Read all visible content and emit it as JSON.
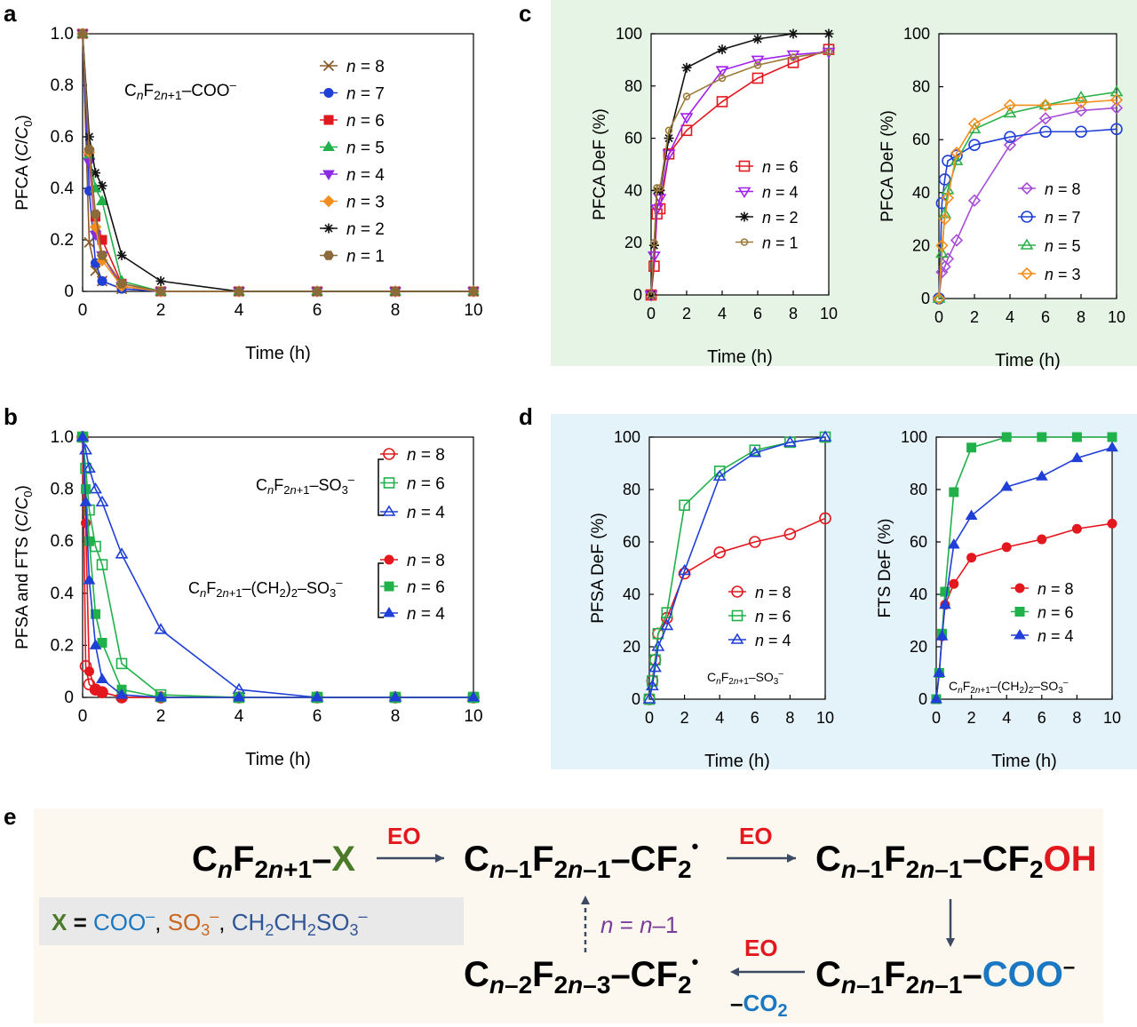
{
  "panels": {
    "a": {
      "label": "a"
    },
    "b": {
      "label": "b"
    },
    "c": {
      "label": "c",
      "bg": "#e6f4e6"
    },
    "d": {
      "label": "d",
      "bg": "#e4f2fa"
    },
    "e": {
      "label": "e",
      "bg": "#fcf7ef"
    }
  },
  "colors": {
    "n8": "#8b5a2b",
    "n7": "#1f3fd6",
    "n6": "#e3181f",
    "n5": "#20b14a",
    "n4": "#8a2be2",
    "n3": "#f28e1c",
    "n2": "#111111",
    "n1": "#8b6b3a",
    "c_n6": "#e3181f",
    "c_n4": "#a020f0",
    "c_n2": "#111111",
    "c_n1": "#9c7a3c",
    "c_n8": "#a64dd6",
    "c_n7": "#1f3fd6",
    "c_n5": "#2cb14a",
    "c_n3": "#f28e1c",
    "s_n8": "#e3181f",
    "s_n6": "#20b14a",
    "s_n4": "#1f3fd6"
  },
  "chart_data": [
    {
      "id": "a",
      "type": "line",
      "ylabel": "PFCA (C/C0)",
      "xlabel": "Time (h)",
      "xlim": [
        0,
        10
      ],
      "ylim": [
        0,
        1.0
      ],
      "xticks": [
        "0",
        "2",
        "4",
        "6",
        "8",
        "10"
      ],
      "yticks": [
        "0",
        "0.2",
        "0.4",
        "0.6",
        "0.8",
        "1.0"
      ],
      "annotation": "CnF2n+1–COO⁻",
      "x": [
        0,
        0.17,
        0.33,
        0.5,
        1,
        2,
        4,
        6,
        8,
        10
      ],
      "series": [
        {
          "name": "n = 8",
          "marker": "x",
          "color": "n8",
          "values": [
            1.0,
            0.19,
            0.08,
            0.04,
            0.01,
            0.0,
            0.0,
            0.0,
            0.0,
            0.0
          ]
        },
        {
          "name": "n = 7",
          "marker": "circle",
          "color": "n7",
          "values": [
            1.0,
            0.39,
            0.11,
            0.04,
            0.01,
            0.0,
            0.0,
            0.0,
            0.0,
            0.0
          ]
        },
        {
          "name": "n = 6",
          "marker": "square",
          "color": "n6",
          "values": [
            1.0,
            0.54,
            0.29,
            0.2,
            0.03,
            0.0,
            0.0,
            0.0,
            0.0,
            0.0
          ]
        },
        {
          "name": "n = 5",
          "marker": "triangle-up",
          "color": "n5",
          "values": [
            1.0,
            0.53,
            0.4,
            0.35,
            0.04,
            0.0,
            0.0,
            0.0,
            0.0,
            0.0
          ]
        },
        {
          "name": "n = 4",
          "marker": "triangle-down",
          "color": "n4",
          "values": [
            1.0,
            0.5,
            0.22,
            0.14,
            0.02,
            0.0,
            0.0,
            0.0,
            0.0,
            0.0
          ]
        },
        {
          "name": "n = 3",
          "marker": "diamond",
          "color": "n3",
          "values": [
            1.0,
            0.54,
            0.25,
            0.12,
            0.02,
            0.0,
            0.0,
            0.0,
            0.0,
            0.0
          ]
        },
        {
          "name": "n = 2",
          "marker": "star",
          "color": "n2",
          "values": [
            1.0,
            0.6,
            0.46,
            0.41,
            0.14,
            0.04,
            0.0,
            0.0,
            0.0,
            0.0
          ]
        },
        {
          "name": "n = 1",
          "marker": "hexagon",
          "color": "n1",
          "values": [
            1.0,
            0.55,
            0.3,
            0.14,
            0.03,
            0.0,
            0.0,
            0.0,
            0.0,
            0.0
          ]
        }
      ],
      "legend": [
        "n = 8",
        "n = 7",
        "n = 6",
        "n = 5",
        "n = 4",
        "n = 3",
        "n = 2",
        "n = 1"
      ]
    },
    {
      "id": "b",
      "type": "line",
      "ylabel": "PFSA and FTS (C/C0)",
      "xlabel": "Time (h)",
      "xlim": [
        0,
        10
      ],
      "ylim": [
        0,
        1.0
      ],
      "xticks": [
        "0",
        "2",
        "4",
        "6",
        "8",
        "10"
      ],
      "yticks": [
        "0",
        "0.2",
        "0.4",
        "0.6",
        "0.8",
        "1.0"
      ],
      "group_labels": [
        "CnF2n+1–SO3⁻",
        "CnF2n+1–(CH2)2–SO3⁻"
      ],
      "x": [
        0,
        0.08,
        0.17,
        0.33,
        0.5,
        1,
        2,
        4,
        6,
        8,
        10
      ],
      "series": [
        {
          "name": "n = 8",
          "group": 0,
          "marker": "circle-open",
          "color": "s_n8",
          "values": [
            1.0,
            0.12,
            0.05,
            0.03,
            0.02,
            0.0,
            0.0,
            0.0,
            0.0,
            0.0,
            0.0
          ]
        },
        {
          "name": "n = 6",
          "group": 0,
          "marker": "square-open",
          "color": "s_n6",
          "values": [
            1.0,
            0.88,
            0.72,
            0.58,
            0.51,
            0.13,
            0.01,
            0.0,
            0.0,
            0.0,
            0.0
          ]
        },
        {
          "name": "n = 4",
          "group": 0,
          "marker": "triangle-open",
          "color": "s_n4",
          "values": [
            1.0,
            0.95,
            0.88,
            0.8,
            0.75,
            0.55,
            0.26,
            0.03,
            0.0,
            0.0,
            0.0
          ]
        },
        {
          "name": "n = 8",
          "group": 1,
          "marker": "circle",
          "color": "s_n8",
          "values": [
            1.0,
            0.67,
            0.1,
            0.03,
            0.02,
            0.0,
            0.0,
            0.0,
            0.0,
            0.0,
            0.0
          ]
        },
        {
          "name": "n = 6",
          "group": 1,
          "marker": "square",
          "color": "s_n6",
          "values": [
            1.0,
            0.8,
            0.6,
            0.32,
            0.21,
            0.03,
            0.0,
            0.0,
            0.0,
            0.0,
            0.0
          ]
        },
        {
          "name": "n = 4",
          "group": 1,
          "marker": "triangle",
          "color": "s_n4",
          "values": [
            1.0,
            0.75,
            0.45,
            0.2,
            0.07,
            0.01,
            0.0,
            0.0,
            0.0,
            0.0,
            0.0
          ]
        }
      ]
    },
    {
      "id": "c-left",
      "type": "line",
      "ylabel": "PFCA DeF (%)",
      "xlabel": "Time (h)",
      "xlim": [
        0,
        10
      ],
      "ylim": [
        0,
        100
      ],
      "xticks": [
        "0",
        "2",
        "4",
        "6",
        "8",
        "10"
      ],
      "yticks": [
        "0",
        "20",
        "40",
        "60",
        "80",
        "100"
      ],
      "x": [
        0,
        0.17,
        0.33,
        0.5,
        1,
        2,
        4,
        6,
        8,
        10
      ],
      "series": [
        {
          "name": "n = 6",
          "marker": "square-open",
          "color": "c_n6",
          "values": [
            0,
            11,
            31,
            33,
            54,
            63,
            74,
            83,
            89,
            94
          ]
        },
        {
          "name": "n = 4",
          "marker": "triangle-down-open",
          "color": "c_n4",
          "values": [
            0,
            15,
            33,
            37,
            54,
            68,
            86,
            90,
            92,
            93
          ]
        },
        {
          "name": "n = 2",
          "marker": "star",
          "color": "c_n2",
          "values": [
            0,
            19,
            40,
            40,
            60,
            87,
            94,
            98,
            100,
            100
          ]
        },
        {
          "name": "n = 1",
          "marker": "circle-open-small",
          "color": "c_n1",
          "values": [
            0,
            20,
            41,
            41,
            63,
            76,
            83,
            88,
            91,
            93
          ]
        }
      ]
    },
    {
      "id": "c-right",
      "type": "line",
      "ylabel": "PFCA DeF (%)",
      "xlabel": "Time (h)",
      "xlim": [
        0,
        10
      ],
      "ylim": [
        0,
        100
      ],
      "xticks": [
        "0",
        "2",
        "4",
        "6",
        "8",
        "10"
      ],
      "yticks": [
        "0",
        "20",
        "40",
        "60",
        "80",
        "100"
      ],
      "x": [
        0,
        0.17,
        0.33,
        0.5,
        1,
        2,
        4,
        6,
        8,
        10
      ],
      "series": [
        {
          "name": "n = 8",
          "marker": "diamond-open",
          "color": "c_n8",
          "values": [
            0,
            10,
            12,
            15,
            22,
            37,
            58,
            68,
            71,
            72
          ]
        },
        {
          "name": "n = 7",
          "marker": "circle-open",
          "color": "c_n7",
          "values": [
            0,
            36,
            45,
            52,
            54,
            58,
            61,
            63,
            63,
            64
          ]
        },
        {
          "name": "n = 5",
          "marker": "triangle-open",
          "color": "c_n5",
          "values": [
            0,
            17,
            32,
            41,
            52,
            64,
            70,
            73,
            76,
            78
          ]
        },
        {
          "name": "n = 3",
          "marker": "diamond-open",
          "color": "c_n3",
          "values": [
            0,
            20,
            30,
            38,
            55,
            66,
            73,
            73,
            74,
            75
          ]
        }
      ]
    },
    {
      "id": "d-left",
      "type": "line",
      "ylabel": "PFSA DeF (%)",
      "xlabel": "Time (h)",
      "xlim": [
        0,
        10
      ],
      "ylim": [
        0,
        100
      ],
      "xticks": [
        "0",
        "2",
        "4",
        "6",
        "8",
        "10"
      ],
      "yticks": [
        "0",
        "20",
        "40",
        "60",
        "80",
        "100"
      ],
      "annotation": "CnF2n+1–SO3⁻",
      "x": [
        0,
        0.17,
        0.33,
        0.5,
        1,
        2,
        4,
        6,
        8,
        10
      ],
      "series": [
        {
          "name": "n = 8",
          "marker": "circle-open",
          "color": "s_n8",
          "values": [
            0,
            7,
            15,
            25,
            31,
            48,
            56,
            60,
            63,
            69
          ]
        },
        {
          "name": "n = 6",
          "marker": "square-open",
          "color": "s_n6",
          "values": [
            0,
            7,
            15,
            25,
            33,
            74,
            87,
            95,
            98,
            100
          ]
        },
        {
          "name": "n = 4",
          "marker": "triangle-open",
          "color": "s_n4",
          "values": [
            0,
            5,
            12,
            20,
            28,
            49,
            85,
            94,
            98,
            100
          ]
        }
      ]
    },
    {
      "id": "d-right",
      "type": "line",
      "ylabel": "FTS DeF (%)",
      "xlabel": "Time (h)",
      "xlim": [
        0,
        10
      ],
      "ylim": [
        0,
        100
      ],
      "xticks": [
        "0",
        "2",
        "4",
        "6",
        "8",
        "10"
      ],
      "yticks": [
        "0",
        "20",
        "40",
        "60",
        "80",
        "100"
      ],
      "annotation": "CnF2n+1–(CH2)2–SO3⁻",
      "x": [
        0,
        0.17,
        0.33,
        0.5,
        1,
        2,
        4,
        6,
        8,
        10
      ],
      "series": [
        {
          "name": "n = 8",
          "marker": "circle",
          "color": "s_n8",
          "values": [
            0,
            10,
            24,
            36,
            44,
            54,
            58,
            61,
            65,
            67
          ]
        },
        {
          "name": "n = 6",
          "marker": "square",
          "color": "s_n6",
          "values": [
            0,
            10,
            25,
            41,
            79,
            96,
            100,
            100,
            100,
            100
          ]
        },
        {
          "name": "n = 4",
          "marker": "triangle",
          "color": "s_n4",
          "values": [
            0,
            10,
            24,
            36,
            59,
            70,
            81,
            85,
            92,
            96
          ]
        }
      ]
    }
  ],
  "scheme": {
    "start": "CnF2n+1–X",
    "r1": "Cn–1F2n–1–CF2•",
    "r2": "Cn–1F2n–1–CF2OH",
    "r3": "Cn–1F2n–1–COO⁻",
    "r4": "Cn–2F2n–3–CF2•",
    "eo": "EO",
    "co2": "–CO2",
    "loop": "n = n–1",
    "x_def": "X = COO⁻, SO3⁻, CH2CH2SO3⁻"
  }
}
